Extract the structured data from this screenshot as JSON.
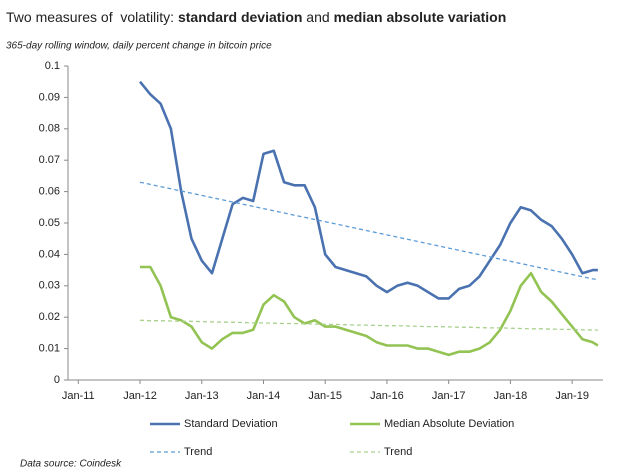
{
  "chart_data": {
    "type": "line",
    "title": [
      "Two measures of  volatility: ",
      "standard deviation",
      " and ",
      "median absolute variation"
    ],
    "title_bold": [
      false,
      true,
      false,
      true
    ],
    "subtitle": "365-day rolling window, daily percent change in bitcoin price",
    "footnote": "Data source: Coindesk",
    "x": [
      "2012-01",
      "2012-03",
      "2012-05",
      "2012-07",
      "2012-09",
      "2012-11",
      "2013-01",
      "2013-03",
      "2013-05",
      "2013-07",
      "2013-09",
      "2013-11",
      "2014-01",
      "2014-03",
      "2014-05",
      "2014-07",
      "2014-09",
      "2014-11",
      "2015-01",
      "2015-03",
      "2015-05",
      "2015-07",
      "2015-09",
      "2015-11",
      "2016-01",
      "2016-03",
      "2016-05",
      "2016-07",
      "2016-09",
      "2016-11",
      "2017-01",
      "2017-03",
      "2017-05",
      "2017-07",
      "2017-09",
      "2017-11",
      "2018-01",
      "2018-03",
      "2018-05",
      "2018-07",
      "2018-09",
      "2018-11",
      "2019-01",
      "2019-03",
      "2019-05",
      "2019-06"
    ],
    "xlim": [
      "2010-11",
      "2019-07"
    ],
    "xticks": [
      {
        "value": "2011-01",
        "label": "Jan-11"
      },
      {
        "value": "2012-01",
        "label": "Jan-12"
      },
      {
        "value": "2013-01",
        "label": "Jan-13"
      },
      {
        "value": "2014-01",
        "label": "Jan-14"
      },
      {
        "value": "2015-01",
        "label": "Jan-15"
      },
      {
        "value": "2016-01",
        "label": "Jan-16"
      },
      {
        "value": "2017-01",
        "label": "Jan-17"
      },
      {
        "value": "2018-01",
        "label": "Jan-18"
      },
      {
        "value": "2019-01",
        "label": "Jan-19"
      }
    ],
    "ylim": [
      0,
      0.1
    ],
    "yticks": [
      0,
      0.01,
      0.02,
      0.03,
      0.04,
      0.05,
      0.06,
      0.07,
      0.08,
      0.09,
      0.1
    ],
    "series": [
      {
        "name": "Standard Deviation",
        "color": "#4a72b0",
        "dash": false,
        "values": [
          0.095,
          0.091,
          0.088,
          0.08,
          0.06,
          0.045,
          0.038,
          0.034,
          0.045,
          0.056,
          0.058,
          0.057,
          0.072,
          0.073,
          0.063,
          0.062,
          0.062,
          0.055,
          0.04,
          0.036,
          0.035,
          0.034,
          0.033,
          0.03,
          0.028,
          0.03,
          0.031,
          0.03,
          0.028,
          0.026,
          0.026,
          0.029,
          0.03,
          0.033,
          0.038,
          0.043,
          0.05,
          0.055,
          0.054,
          0.051,
          0.049,
          0.045,
          0.04,
          0.034,
          0.035,
          0.035
        ]
      },
      {
        "name": "Median Absolute Deviation",
        "color": "#92c353",
        "dash": false,
        "values": [
          0.036,
          0.036,
          0.03,
          0.02,
          0.019,
          0.017,
          0.012,
          0.01,
          0.013,
          0.015,
          0.015,
          0.016,
          0.024,
          0.027,
          0.025,
          0.02,
          0.018,
          0.019,
          0.017,
          0.017,
          0.016,
          0.015,
          0.014,
          0.012,
          0.011,
          0.011,
          0.011,
          0.01,
          0.01,
          0.009,
          0.008,
          0.009,
          0.009,
          0.01,
          0.012,
          0.016,
          0.022,
          0.03,
          0.034,
          0.028,
          0.025,
          0.021,
          0.017,
          0.013,
          0.012,
          0.011
        ]
      },
      {
        "name": "Trend",
        "color": "#5b9bd5",
        "dash": true,
        "values": [
          0.063,
          0.0623,
          0.0616,
          0.0609,
          0.0602,
          0.0595,
          0.0588,
          0.0581,
          0.0574,
          0.0567,
          0.056,
          0.0553,
          0.0546,
          0.0539,
          0.0532,
          0.0525,
          0.0518,
          0.0511,
          0.0504,
          0.0497,
          0.049,
          0.0483,
          0.0476,
          0.0469,
          0.0462,
          0.0455,
          0.0448,
          0.0441,
          0.0434,
          0.0427,
          0.042,
          0.0413,
          0.0406,
          0.0399,
          0.0392,
          0.0385,
          0.0378,
          0.0371,
          0.0364,
          0.0357,
          0.035,
          0.0343,
          0.0336,
          0.0329,
          0.0322,
          0.032
        ]
      },
      {
        "name": "Trend",
        "color": "#a9d18e",
        "dash": true,
        "values": [
          0.019,
          0.0189,
          0.0189,
          0.0188,
          0.0187,
          0.0187,
          0.0186,
          0.0185,
          0.0184,
          0.0184,
          0.0183,
          0.0182,
          0.0182,
          0.0181,
          0.018,
          0.018,
          0.0179,
          0.0178,
          0.0177,
          0.0177,
          0.0176,
          0.0175,
          0.0175,
          0.0174,
          0.0173,
          0.0173,
          0.0172,
          0.0171,
          0.017,
          0.017,
          0.0169,
          0.0168,
          0.0168,
          0.0167,
          0.0166,
          0.0166,
          0.0165,
          0.0164,
          0.0163,
          0.0163,
          0.0162,
          0.0161,
          0.0161,
          0.016,
          0.0159,
          0.0159
        ]
      }
    ]
  }
}
